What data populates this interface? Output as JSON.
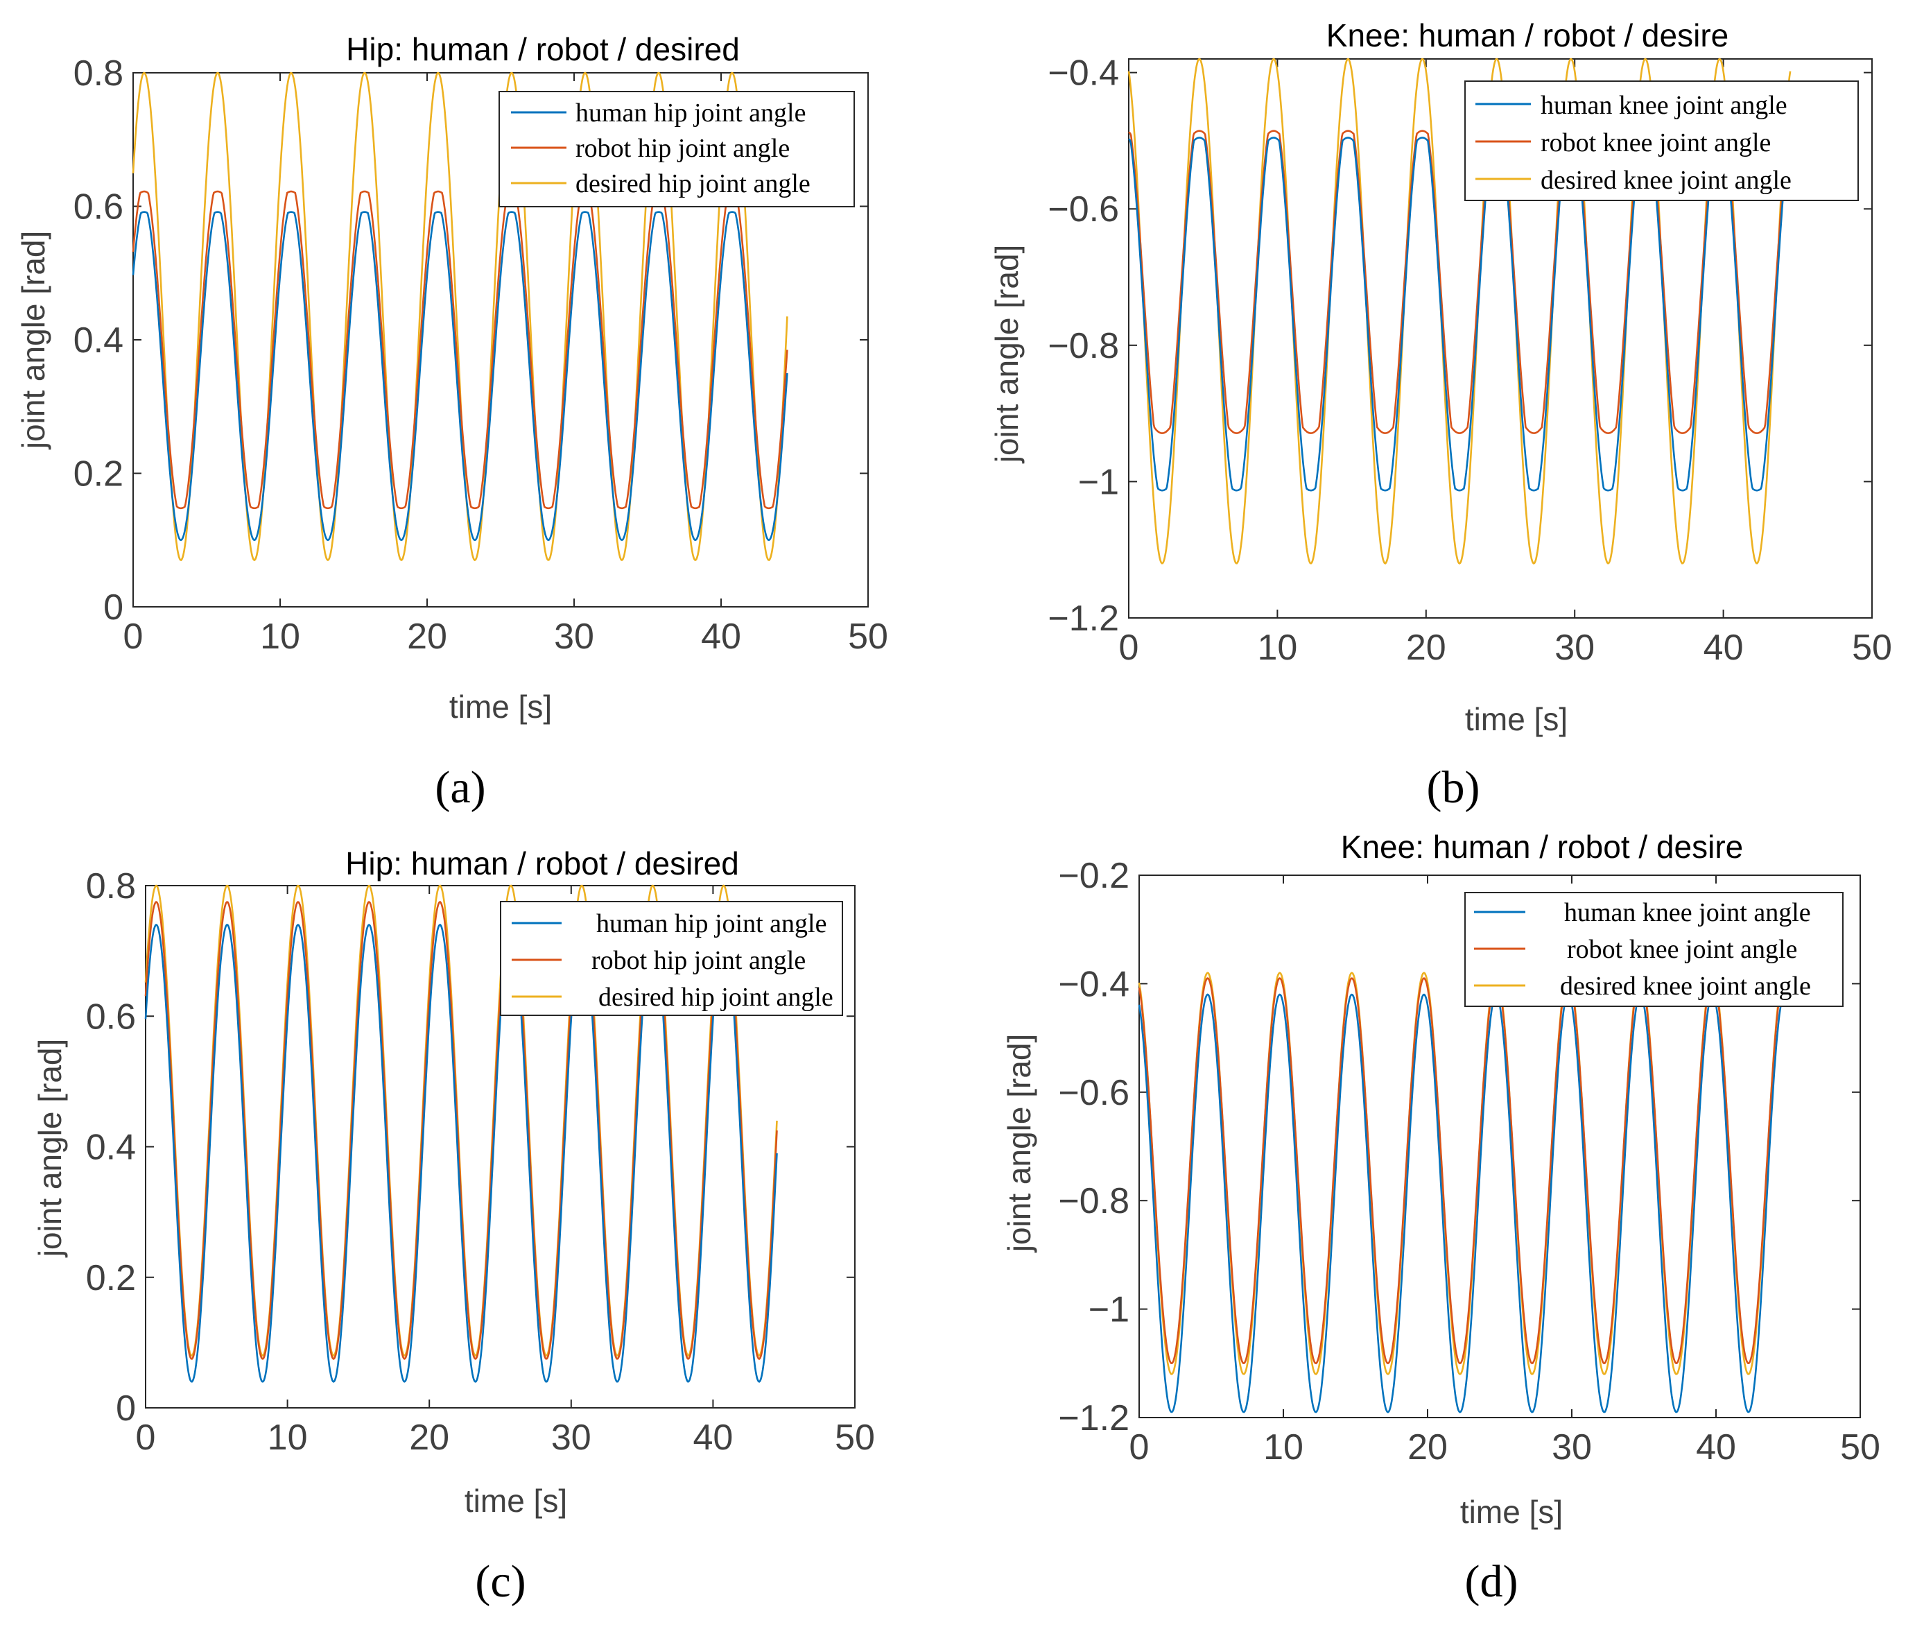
{
  "charts": [
    {
      "panel": "a",
      "chart_data": {
        "type": "line",
        "title": "Hip: human / robot / desired",
        "xlabel": "time [s]",
        "ylabel": "joint angle [rad]",
        "xlim": [
          0,
          50
        ],
        "ylim": [
          0,
          0.8
        ],
        "xticks": [
          0,
          10,
          20,
          30,
          40,
          50
        ],
        "xtick_labels": [
          "0",
          "10",
          "20",
          "30",
          "40",
          "50"
        ],
        "yticks": [
          0,
          0.2,
          0.4,
          0.6,
          0.8
        ],
        "ytick_labels": [
          "0",
          "0.2",
          "0.4",
          "0.6",
          "0.8"
        ],
        "legend_position": "top-right",
        "x_range": [
          0,
          44.5
        ],
        "period": 5.0,
        "series": [
          {
            "name": "human hip joint angle",
            "color": "#0072BD",
            "center": 0.35,
            "amplitude": 0.25,
            "clip_top": 0.59,
            "clip_bottom": 0.1,
            "peak_time": 0.75
          },
          {
            "name": "robot hip joint angle",
            "color": "#D95319",
            "center": 0.385,
            "amplitude": 0.25,
            "clip_top": 0.62,
            "clip_bottom": 0.15,
            "peak_time": 0.75
          },
          {
            "name": "desired hip joint angle",
            "color": "#EDB120",
            "center": 0.435,
            "amplitude": 0.365,
            "peak_time": 0.75
          }
        ]
      },
      "panel_label": "(a)"
    },
    {
      "panel": "b",
      "chart_data": {
        "type": "line",
        "title": "Knee: human / robot / desire",
        "xlabel": "time [s]",
        "ylabel": "joint angle [rad]",
        "xlim": [
          0,
          50
        ],
        "ylim": [
          -1.2,
          -0.38
        ],
        "xticks": [
          0,
          10,
          20,
          30,
          40,
          50
        ],
        "xtick_labels": [
          "0",
          "10",
          "20",
          "30",
          "40",
          "50"
        ],
        "yticks": [
          -1.2,
          -1,
          -0.8,
          -0.6,
          -0.4
        ],
        "ytick_labels": [
          "−1.2",
          "−1",
          "−0.8",
          "−0.6",
          "−0.4"
        ],
        "legend_position": "top-right",
        "x_range": [
          0,
          44.5
        ],
        "period": 5.0,
        "series": [
          {
            "name": "human knee joint angle",
            "color": "#0072BD",
            "center": -0.75,
            "amplitude": 0.28,
            "clip_top": -0.5,
            "clip_bottom": -1.01,
            "peak_time": 4.75
          },
          {
            "name": "robot knee joint angle",
            "color": "#D95319",
            "center": -0.72,
            "amplitude": 0.26,
            "clip_top": -0.49,
            "clip_bottom": -0.92,
            "peak_time": 4.75
          },
          {
            "name": "desired knee joint angle",
            "color": "#EDB120",
            "center": -0.75,
            "amplitude": 0.37,
            "peak_time": 4.75
          }
        ]
      },
      "panel_label": "(b)"
    },
    {
      "panel": "c",
      "chart_data": {
        "type": "line",
        "title": "Hip: human / robot / desired",
        "xlabel": "time [s]",
        "ylabel": "joint angle [rad]",
        "xlim": [
          0,
          50
        ],
        "ylim": [
          0,
          0.8
        ],
        "xticks": [
          0,
          10,
          20,
          30,
          40,
          50
        ],
        "xtick_labels": [
          "0",
          "10",
          "20",
          "30",
          "40",
          "50"
        ],
        "yticks": [
          0,
          0.2,
          0.4,
          0.6,
          0.8
        ],
        "ytick_labels": [
          "0",
          "0.2",
          "0.4",
          "0.6",
          "0.8"
        ],
        "legend_position": "top-right",
        "x_range": [
          0,
          44.5
        ],
        "period": 5.0,
        "series": [
          {
            "name": "human hip joint angle",
            "color": "#0072BD",
            "center": 0.39,
            "amplitude": 0.35,
            "peak_time": 0.75
          },
          {
            "name": "robot hip joint angle",
            "color": "#D95319",
            "center": 0.425,
            "amplitude": 0.35,
            "peak_time": 0.75
          },
          {
            "name": "desired hip joint angle",
            "color": "#EDB120",
            "center": 0.44,
            "amplitude": 0.36,
            "peak_time": 0.75
          }
        ]
      },
      "panel_label": "(c)"
    },
    {
      "panel": "d",
      "chart_data": {
        "type": "line",
        "title": "Knee: human / robot / desire",
        "xlabel": "time [s]",
        "ylabel": "joint angle [rad]",
        "xlim": [
          0,
          50
        ],
        "ylim": [
          -1.2,
          -0.2
        ],
        "xticks": [
          0,
          10,
          20,
          30,
          40,
          50
        ],
        "xtick_labels": [
          "0",
          "10",
          "20",
          "30",
          "40",
          "50"
        ],
        "yticks": [
          -1.2,
          -1,
          -0.8,
          -0.6,
          -0.4,
          -0.2
        ],
        "ytick_labels": [
          "−1.2",
          "−1",
          "−0.8",
          "−0.6",
          "−0.4",
          "−0.2"
        ],
        "legend_position": "top-right",
        "x_range": [
          0,
          44.5
        ],
        "period": 5.0,
        "series": [
          {
            "name": "human knee joint angle",
            "color": "#0072BD",
            "center": -0.805,
            "amplitude": 0.385,
            "peak_time": 4.75
          },
          {
            "name": "robot knee joint angle",
            "color": "#D95319",
            "center": -0.745,
            "amplitude": 0.355,
            "peak_time": 4.75
          },
          {
            "name": "desired knee joint angle",
            "color": "#EDB120",
            "center": -0.75,
            "amplitude": 0.37,
            "peak_time": 4.75
          }
        ]
      },
      "panel_label": "(d)"
    }
  ]
}
